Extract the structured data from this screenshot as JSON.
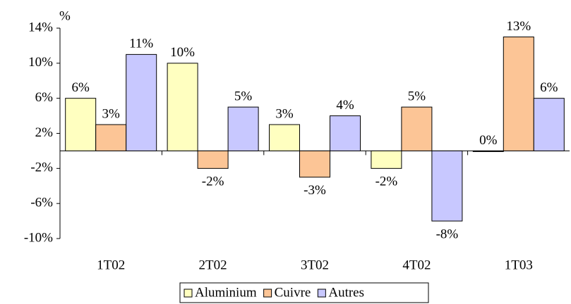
{
  "chart_data": {
    "type": "bar",
    "y_label": "%",
    "categories": [
      "1T02",
      "2T02",
      "3T02",
      "4T02",
      "1T03"
    ],
    "series": [
      {
        "name": "Aluminium",
        "color": "#ffffc0",
        "values": [
          6,
          10,
          3,
          -2,
          0
        ],
        "value_labels": [
          "6%",
          "10%",
          "3%",
          "-2%",
          "0%"
        ]
      },
      {
        "name": "Cuivre",
        "color": "#fcc596",
        "values": [
          3,
          -2,
          -3,
          5,
          13
        ],
        "value_labels": [
          "3%",
          "-2%",
          "-3%",
          "5%",
          "13%"
        ]
      },
      {
        "name": "Autres",
        "color": "#c8c8ff",
        "values": [
          11,
          5,
          4,
          -8,
          6
        ],
        "value_labels": [
          "11%",
          "5%",
          "4%",
          "-8%",
          "6%"
        ]
      }
    ],
    "ylim": [
      -10,
      14
    ],
    "yticks": [
      {
        "value": -10,
        "label": "-10%"
      },
      {
        "value": -6,
        "label": "-6%"
      },
      {
        "value": -2,
        "label": "-2%"
      },
      {
        "value": 2,
        "label": "2%"
      },
      {
        "value": 6,
        "label": "6%"
      },
      {
        "value": 10,
        "label": "10%"
      },
      {
        "value": 14,
        "label": "14%"
      }
    ],
    "legend": "bottom"
  }
}
